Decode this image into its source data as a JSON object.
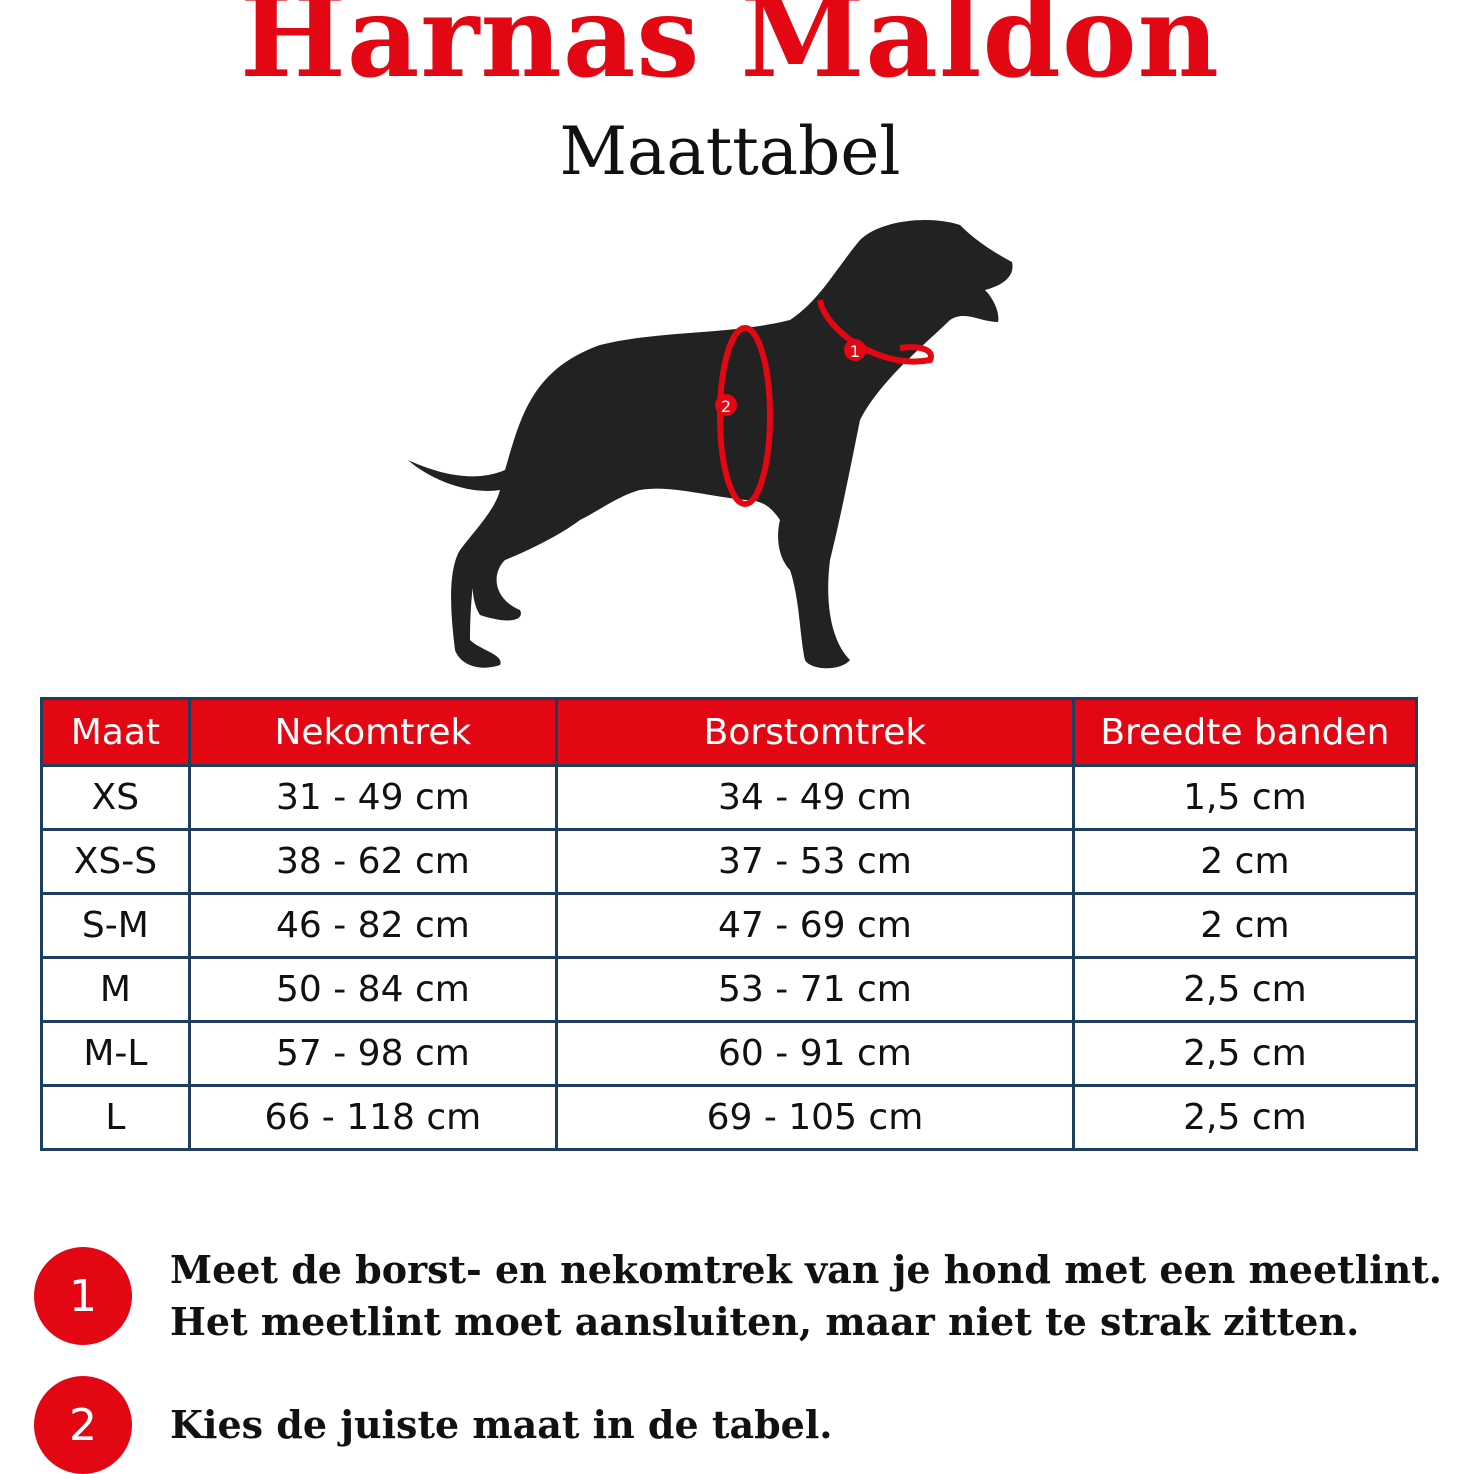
{
  "header": {
    "title": "Harnas Maldon",
    "subtitle": "Maattabel"
  },
  "illustration": {
    "markers": [
      "1",
      "2"
    ],
    "accent_color": "#e30613"
  },
  "table": {
    "headers": [
      "Maat",
      "Nekomtrek",
      "Borstomtrek",
      "Breedte banden"
    ],
    "rows": [
      [
        "XS",
        "31 - 49 cm",
        "34 - 49 cm",
        "1,5 cm"
      ],
      [
        "XS-S",
        "38 - 62 cm",
        "37 - 53 cm",
        "2 cm"
      ],
      [
        "S-M",
        "46 - 82 cm",
        "47 - 69 cm",
        "2 cm"
      ],
      [
        "M",
        "50 - 84 cm",
        "53 - 71 cm",
        "2,5 cm"
      ],
      [
        "M-L",
        "57 - 98 cm",
        "60 - 91 cm",
        "2,5 cm"
      ],
      [
        "L",
        "66 - 118 cm",
        "69 - 105 cm",
        "2,5 cm"
      ]
    ]
  },
  "steps": [
    {
      "number": "1",
      "line1": "Meet de borst- en nekomtrek van je hond met een meetlint.",
      "line2": "Het meetlint moet aansluiten, maar niet te strak zitten."
    },
    {
      "number": "2",
      "line1": "Kies de juiste maat in de tabel."
    }
  ],
  "colors": {
    "brand_red": "#e30613",
    "table_border": "#1d3e5e"
  }
}
